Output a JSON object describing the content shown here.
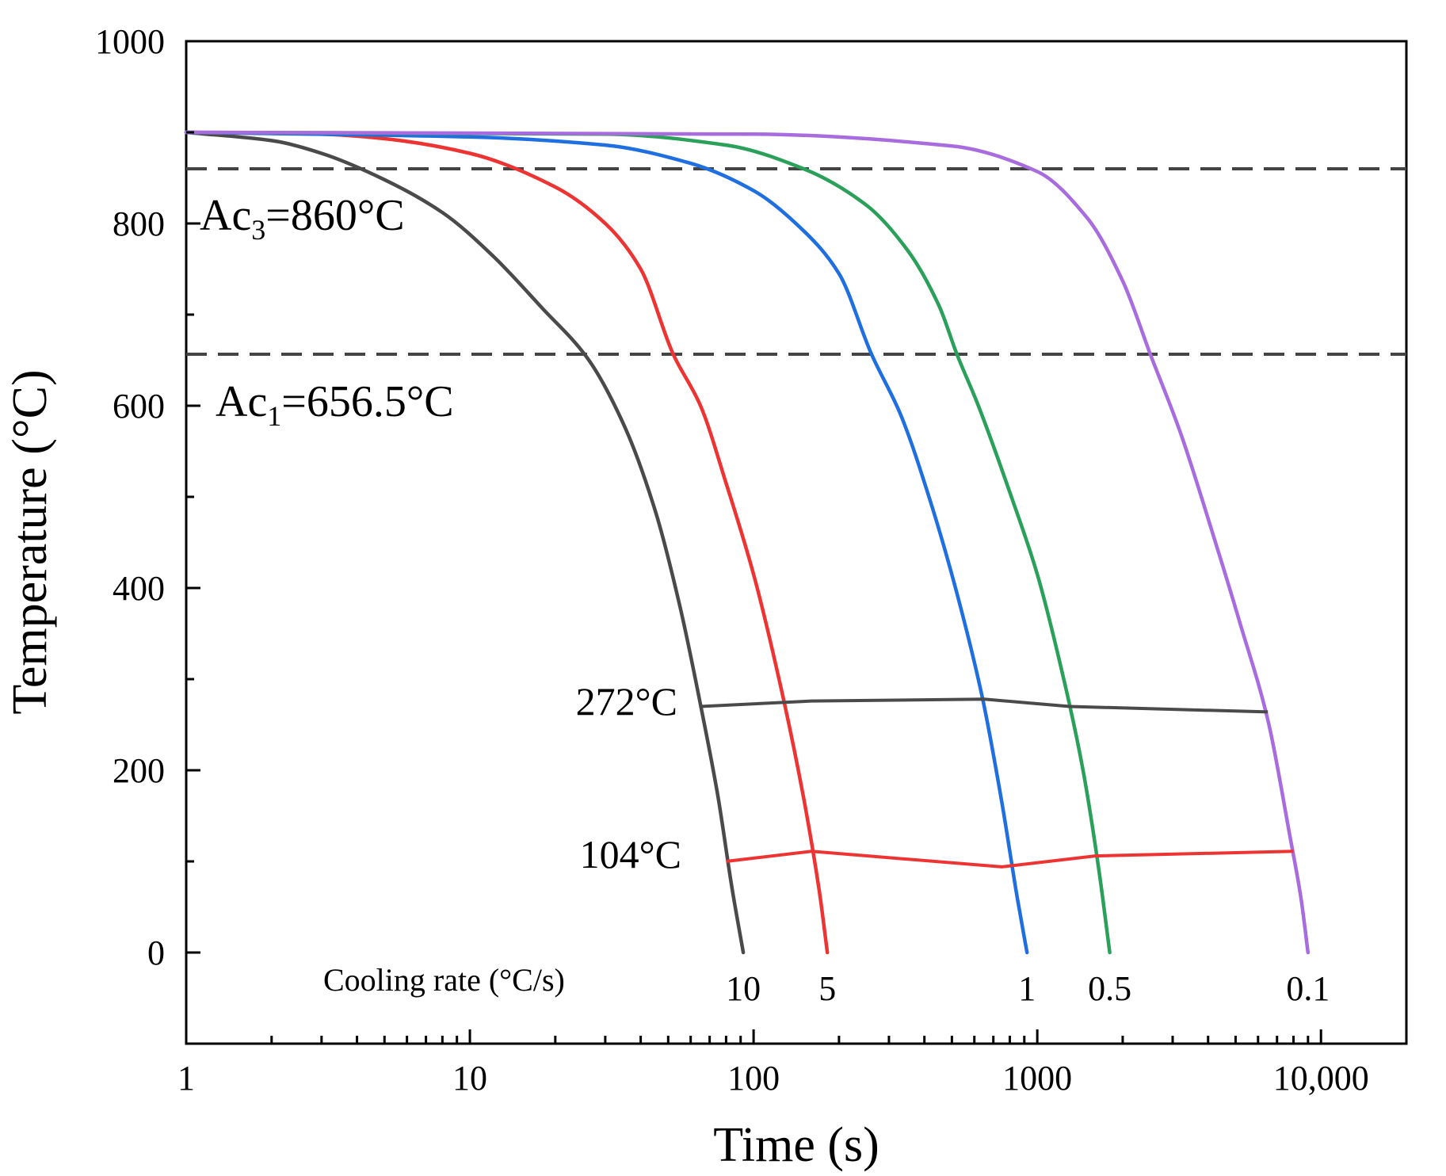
{
  "chart_data": {
    "type": "line",
    "title": "",
    "xlabel": "Time (s)",
    "ylabel": "Temperature (°C)",
    "xscale": "log",
    "xlim": [
      1,
      20000
    ],
    "ylim": [
      -100,
      1000
    ],
    "x_ticks": [
      {
        "value": 1,
        "label": "1"
      },
      {
        "value": 10,
        "label": "10"
      },
      {
        "value": 100,
        "label": "100"
      },
      {
        "value": 1000,
        "label": "1000"
      },
      {
        "value": 10000,
        "label": "10,000"
      }
    ],
    "y_ticks": [
      {
        "value": 0,
        "label": "0"
      },
      {
        "value": 200,
        "label": "200"
      },
      {
        "value": 400,
        "label": "400"
      },
      {
        "value": 600,
        "label": "600"
      },
      {
        "value": 800,
        "label": "800"
      },
      {
        "value": 1000,
        "label": "1000"
      }
    ],
    "series": [
      {
        "name": "10",
        "color": "#4a4a4a",
        "x": [
          1,
          2,
          3,
          5,
          8,
          12,
          18,
          26,
          35,
          45,
          55,
          65,
          75,
          84,
          92
        ],
        "y": [
          900,
          891,
          877,
          848,
          812,
          765,
          707,
          652,
          578,
          485,
          380,
          272,
          170,
          70,
          0
        ]
      },
      {
        "name": "5",
        "color": "#ee3333",
        "x": [
          1,
          3,
          5,
          10,
          20,
          30,
          40,
          52,
          65,
          80,
          100,
          125,
          150,
          170,
          182
        ],
        "y": [
          900,
          898,
          893,
          877,
          840,
          800,
          750,
          657,
          600,
          515,
          415,
          290,
          170,
          70,
          0
        ]
      },
      {
        "name": "1",
        "color": "#1f6fe0",
        "x": [
          1,
          10,
          30,
          60,
          100,
          150,
          200,
          260,
          330,
          420,
          520,
          640,
          750,
          850,
          920
        ],
        "y": [
          900,
          895,
          886,
          866,
          836,
          792,
          745,
          657,
          590,
          495,
          395,
          280,
          165,
          60,
          0
        ]
      },
      {
        "name": "0.5",
        "color": "#2aa05a",
        "x": [
          1,
          30,
          80,
          150,
          250,
          350,
          450,
          520,
          620,
          800,
          1000,
          1250,
          1450,
          1650,
          1800
        ],
        "y": [
          900,
          898,
          886,
          860,
          820,
          770,
          710,
          657,
          600,
          505,
          415,
          295,
          200,
          90,
          0
        ]
      },
      {
        "name": "0.1",
        "color": "#a86cdf",
        "x": [
          1,
          100,
          500,
          1000,
          1500,
          2000,
          2500,
          3200,
          4200,
          5200,
          6500,
          7800,
          8500,
          9000
        ],
        "y": [
          900,
          898,
          885,
          857,
          806,
          737,
          657,
          570,
          455,
          360,
          255,
          125,
          60,
          0
        ]
      }
    ],
    "connector_lines": [
      {
        "label": "272°C",
        "color": "#4a4a4a",
        "x": [
          65,
          160,
          650,
          1300,
          6500
        ],
        "y": [
          270,
          276,
          278,
          270,
          264
        ]
      },
      {
        "label": "104°C",
        "color": "#ee3333",
        "x": [
          80,
          160,
          750,
          1600,
          8000
        ],
        "y": [
          100,
          111,
          94,
          106,
          111
        ]
      }
    ],
    "reference_lines": [
      {
        "label": "Ac",
        "subscript": "3",
        "suffix": "=860°C",
        "y": 860,
        "color": "#444444"
      },
      {
        "label": "Ac",
        "subscript": "1",
        "suffix": "=656.5°C",
        "y": 656.5,
        "color": "#444444"
      }
    ],
    "annotations": {
      "cooling_rate_title": "Cooling rate (°C/s)",
      "rate_labels": [
        {
          "text": "10",
          "x": 92
        },
        {
          "text": "5",
          "x": 182
        },
        {
          "text": "1",
          "x": 920
        },
        {
          "text": "0.5",
          "x": 1800
        },
        {
          "text": "0.1",
          "x": 9000
        }
      ]
    }
  }
}
